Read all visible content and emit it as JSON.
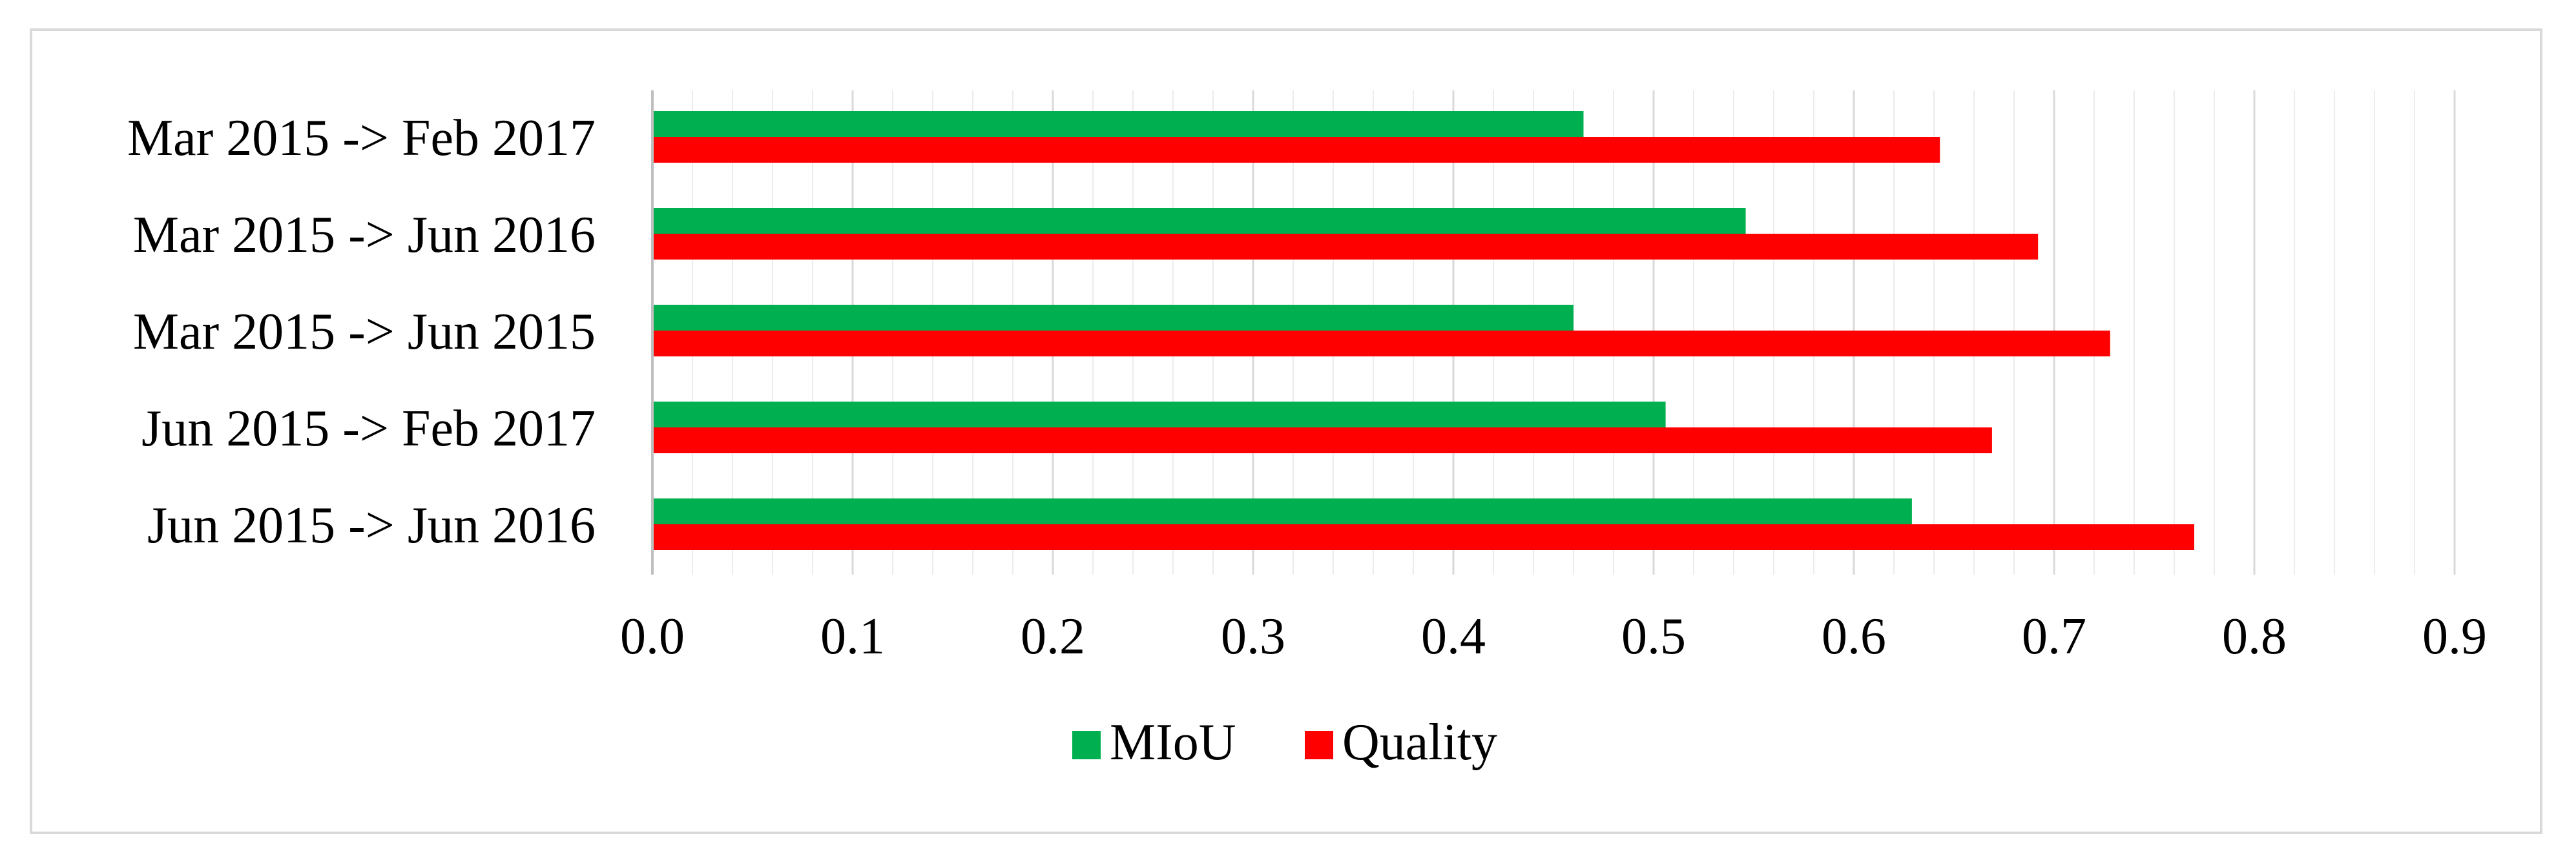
{
  "chart_data": {
    "type": "bar",
    "orientation": "horizontal",
    "categories": [
      "Mar 2015 -> Feb 2017",
      "Mar 2015 -> Jun 2016",
      "Mar 2015 -> Jun 2015",
      "Jun 2015 -> Feb 2017",
      "Jun 2015 -> Jun 2016"
    ],
    "series": [
      {
        "name": "MIoU",
        "color": "#00b050",
        "values": [
          0.465,
          0.546,
          0.46,
          0.506,
          0.629
        ]
      },
      {
        "name": "Quality",
        "color": "#ff0000",
        "values": [
          0.643,
          0.692,
          0.728,
          0.669,
          0.77
        ]
      }
    ],
    "xlim": [
      0.0,
      0.9
    ],
    "xticks": [
      "0.0",
      "0.1",
      "0.2",
      "0.3",
      "0.4",
      "0.5",
      "0.6",
      "0.7",
      "0.8",
      "0.9"
    ],
    "minor_gridlines": true,
    "legend_position": "bottom",
    "title": "",
    "xlabel": "",
    "ylabel": ""
  }
}
